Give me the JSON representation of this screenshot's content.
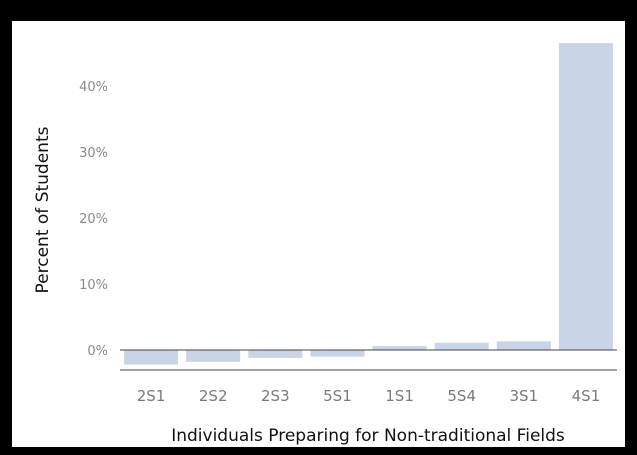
{
  "chart_data": {
    "type": "bar",
    "title": "",
    "xlabel": "Individuals Preparing for Non-traditional Fields",
    "ylabel": "Percent of Students",
    "categories": [
      "2S1",
      "2S2",
      "2S3",
      "5S1",
      "1S1",
      "5S4",
      "3S1",
      "4S1"
    ],
    "values": [
      -2.2,
      -1.8,
      -1.2,
      -1.0,
      0.6,
      1.1,
      1.3,
      46.5
    ],
    "yticks": [
      "0%",
      "10%",
      "20%",
      "30%",
      "40%"
    ],
    "ylim": [
      -3,
      48
    ],
    "grid": false,
    "legend": "none",
    "bar_color": "#c9d5e7"
  }
}
